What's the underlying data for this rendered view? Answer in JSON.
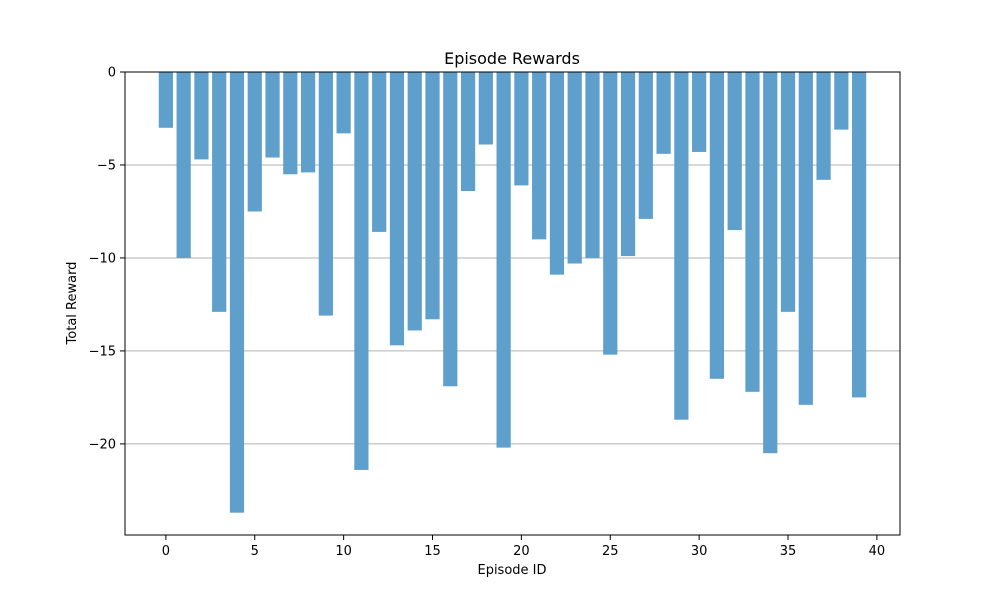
{
  "chart_data": {
    "type": "bar",
    "title": "Episode Rewards",
    "xlabel": "Episode ID",
    "ylabel": "Total Reward",
    "x": [
      0,
      1,
      2,
      3,
      4,
      5,
      6,
      7,
      8,
      9,
      10,
      11,
      12,
      13,
      14,
      15,
      16,
      17,
      18,
      19,
      20,
      21,
      22,
      23,
      24,
      25,
      26,
      27,
      28,
      29,
      30,
      31,
      32,
      33,
      34,
      35,
      36,
      37,
      38,
      39
    ],
    "values": [
      -3.0,
      -10.0,
      -4.7,
      -12.9,
      -23.7,
      -7.5,
      -4.6,
      -5.5,
      -5.4,
      -13.1,
      -3.3,
      -21.4,
      -8.6,
      -14.7,
      -13.9,
      -13.3,
      -16.9,
      -6.4,
      -3.9,
      -20.2,
      -6.1,
      -9.0,
      -10.9,
      -10.3,
      -10.0,
      -15.2,
      -9.9,
      -7.9,
      -4.4,
      -18.7,
      -4.3,
      -16.5,
      -8.5,
      -17.2,
      -20.5,
      -12.9,
      -17.9,
      -5.8,
      -3.1,
      -17.5
    ],
    "ylim": [
      -24.9,
      0
    ],
    "xlim": [
      -2.3,
      41.3
    ],
    "xticks": [
      0,
      5,
      10,
      15,
      20,
      25,
      30,
      35,
      40
    ],
    "xtick_labels": [
      "0",
      "5",
      "10",
      "15",
      "20",
      "25",
      "30",
      "35",
      "40"
    ],
    "yticks": [
      0,
      -5,
      -10,
      -15,
      -20
    ],
    "ytick_labels": [
      "0",
      "−5",
      "−10",
      "−15",
      "−20"
    ],
    "grid": "y",
    "bar_color": "#5f9fcb"
  }
}
